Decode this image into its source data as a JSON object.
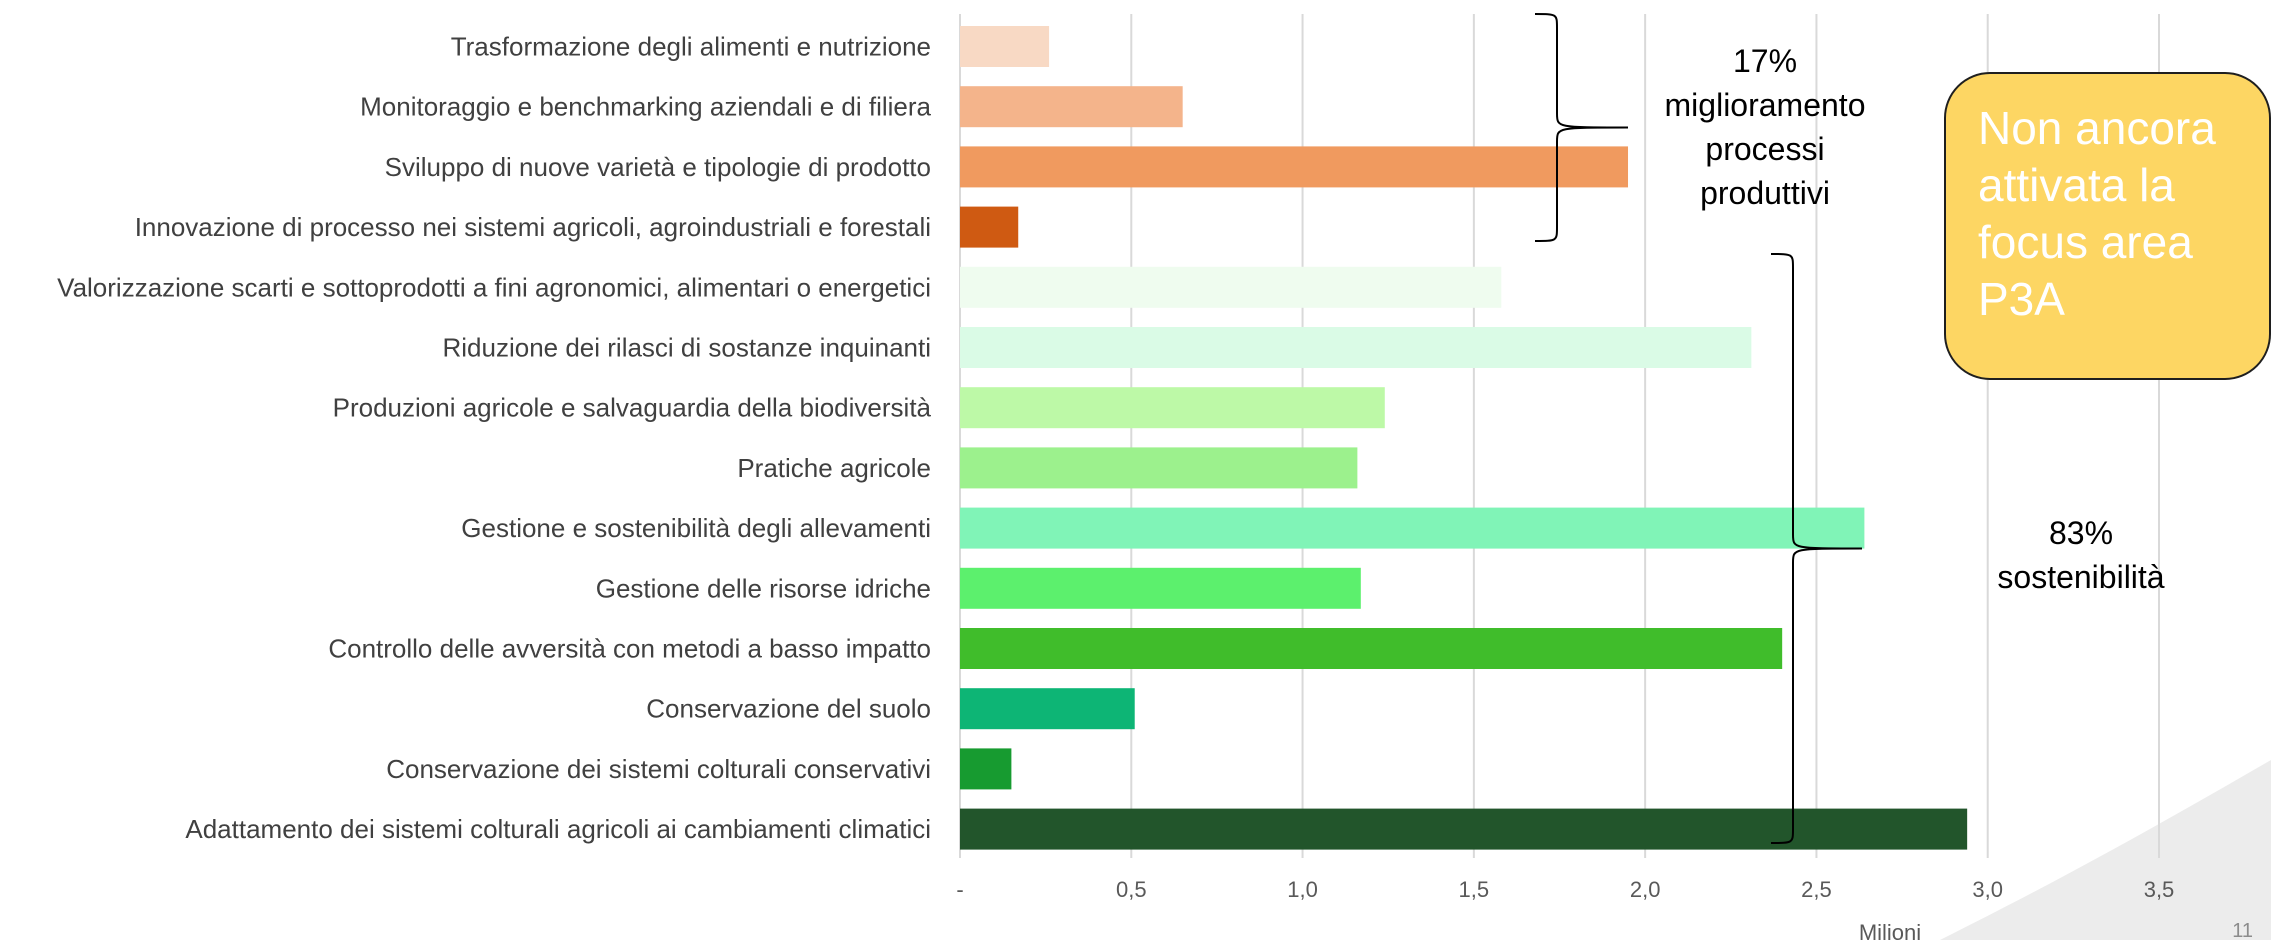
{
  "chart_data": {
    "type": "bar",
    "orientation": "horizontal",
    "categories": [
      "Trasformazione degli alimenti e nutrizione",
      "Monitoraggio e benchmarking aziendali e di filiera",
      "Sviluppo di nuove varietà e tipologie di prodotto",
      "Innovazione di processo nei sistemi agricoli, agroindustriali e forestali",
      "Valorizzazione scarti e sottoprodotti a fini agronomici, alimentari o energetici",
      "Riduzione dei rilasci di sostanze inquinanti ",
      "Produzioni agricole e salvaguardia della biodiversità",
      "Pratiche agricole",
      "Gestione e sostenibilità degli allevamenti",
      "Gestione delle risorse idriche",
      "Controllo delle avversità con metodi a basso impatto",
      "Conservazione del suolo",
      "Conservazione dei sistemi colturali conservativi",
      "Adattamento dei sistemi colturali agricoli ai cambiamenti climatici"
    ],
    "values": [
      0.26,
      0.65,
      1.95,
      0.17,
      1.58,
      2.31,
      1.24,
      1.16,
      2.64,
      1.17,
      2.4,
      0.51,
      0.15,
      2.94
    ],
    "bar_colors": [
      "#f8d9c4",
      "#f4b48b",
      "#f09a5f",
      "#cf5a12",
      "#effcef",
      "#dafbe6",
      "#bdf9a7",
      "#9cf18d",
      "#80f4b7",
      "#5cf06d",
      "#40bd2b",
      "#0db575",
      "#179b30",
      "#22552b"
    ],
    "xlim": [
      0,
      3.5
    ],
    "x_ticks": [
      "-",
      "0,5",
      "1,0",
      "1,5",
      "2,0",
      "2,5",
      "3,0",
      "3,5"
    ],
    "x_unit_label": "Milioni",
    "grid": "vertical",
    "annotations": {
      "group1": {
        "lines": [
          "17%",
          "miglioramento",
          "processi",
          "produttivi"
        ],
        "from_index": 0,
        "to_index": 3
      },
      "group2": {
        "lines": [
          "83%",
          "sostenibilità"
        ],
        "from_index": 4,
        "to_index": 13
      }
    }
  },
  "callout": {
    "lines": [
      "Non ancora",
      "attivata la",
      "focus area",
      "P3A"
    ]
  },
  "slide_number": "11",
  "colors": {
    "gridline": "#d9d9d9",
    "callout_fill": "#fdd663",
    "callout_text": "#ffffff",
    "brace": "#000000"
  }
}
